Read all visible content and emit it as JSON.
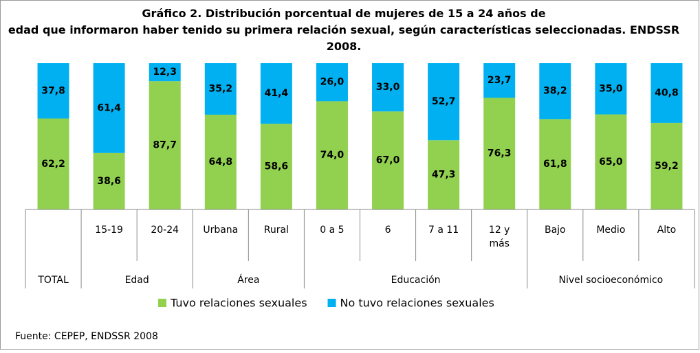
{
  "chart_data": {
    "type": "stacked_bar_100",
    "title": "Gráfico 2. Distribución porcentual de mujeres de 15 a 24 años de edad que informaron haber tenido su primera relación sexual, según características seleccionadas. ENDSSR 2008.",
    "groups": [
      {
        "name": "TOTAL",
        "categories": [
          null
        ]
      },
      {
        "name": "Edad",
        "categories": [
          "15-19",
          "20-24"
        ]
      },
      {
        "name": "Área",
        "categories": [
          "Urbana",
          "Rural"
        ]
      },
      {
        "name": "Educación",
        "categories": [
          "0 a 5",
          "6",
          "7 a 11",
          "12 y más"
        ]
      },
      {
        "name": "Nivel socioeconómico",
        "categories": [
          "Bajo",
          "Medio",
          "Alto"
        ]
      }
    ],
    "series": [
      {
        "name": "Tuvo relaciones sexuales",
        "color": "#92d050",
        "values": [
          62.2,
          38.6,
          87.7,
          64.8,
          58.6,
          74.0,
          67.0,
          47.3,
          76.3,
          61.8,
          65.0,
          59.2
        ],
        "value_labels": [
          "62,2",
          "38,6",
          "87,7",
          "64,8",
          "58,6",
          "74,0",
          "67,0",
          "47,3",
          "76,3",
          "61,8",
          "65,0",
          "59,2"
        ]
      },
      {
        "name": "No tuvo relaciones sexuales",
        "color": "#00b0f0",
        "values": [
          37.8,
          61.4,
          12.3,
          35.2,
          41.4,
          26.0,
          33.0,
          52.7,
          23.7,
          38.2,
          35.0,
          40.8
        ],
        "value_labels": [
          "37,8",
          "61,4",
          "12,3",
          "35,2",
          "41,4",
          "26,0",
          "33,0",
          "52,7",
          "23,7",
          "38,2",
          "35,0",
          "40,8"
        ]
      }
    ],
    "legend": "bottom",
    "source": "Fuente: CEPEP, ENDSSR 2008"
  }
}
